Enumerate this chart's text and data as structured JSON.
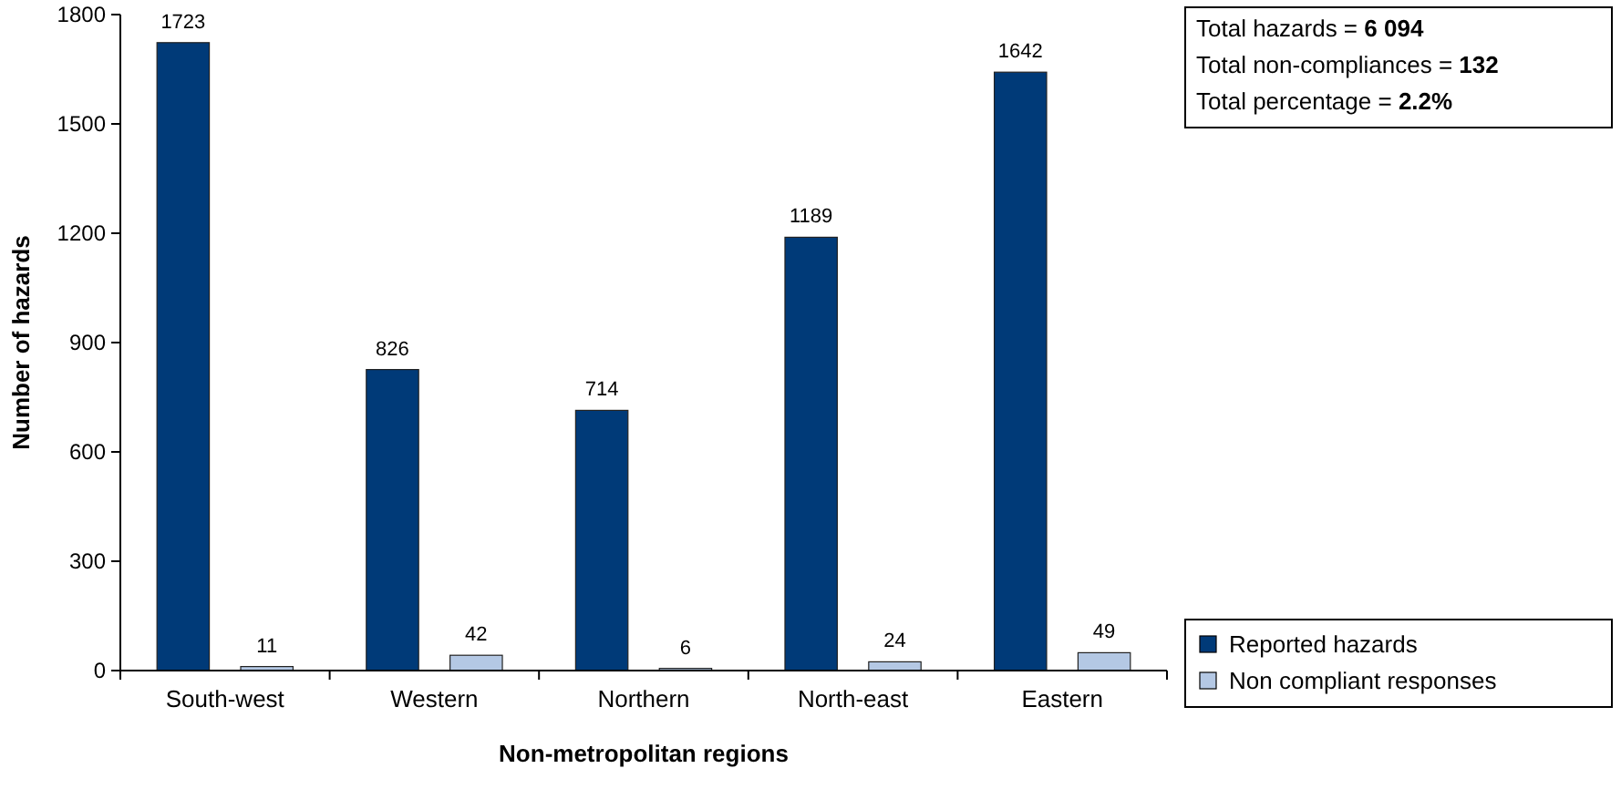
{
  "chart_data": {
    "type": "bar",
    "xlabel": "Non-metropolitan regions",
    "ylabel": "Number of hazards",
    "categories": [
      "South-west",
      "Western",
      "Northern",
      "North-east",
      "Eastern"
    ],
    "series": [
      {
        "name": "Reported hazards",
        "color": "#003a78",
        "values": [
          1723,
          826,
          714,
          1189,
          1642
        ]
      },
      {
        "name": "Non compliant responses",
        "color": "#b4c8e4",
        "values": [
          11,
          42,
          6,
          24,
          49
        ]
      }
    ],
    "ylim": [
      0,
      1800
    ],
    "yticks": [
      0,
      300,
      600,
      900,
      1200,
      1500,
      1800
    ],
    "grid": false,
    "legend": "bottom right",
    "data_labels": true,
    "annotations": [
      "Total hazards = 6 094",
      "Total non-compliances = 132",
      "Total percentage = 2.2%"
    ]
  }
}
